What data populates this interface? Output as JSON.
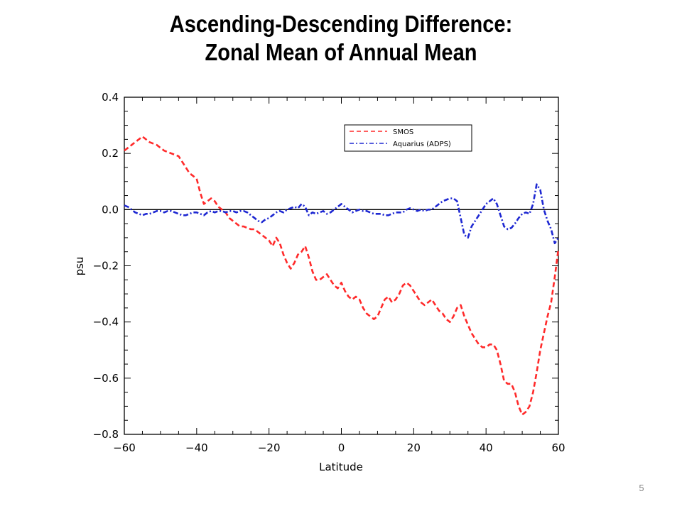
{
  "slide": {
    "title_line1": "Ascending-Descending Difference:",
    "title_line2": "Zonal Mean of Annual Mean",
    "page_number": "5"
  },
  "chart_data": {
    "type": "line",
    "title": "Ascending-Descending Difference: Zonal Mean of Annual Mean",
    "xlabel": "Latitude",
    "ylabel": "psu",
    "xlim": [
      -60,
      60
    ],
    "ylim": [
      -0.8,
      0.4
    ],
    "xticks": [
      -60,
      -40,
      -20,
      0,
      20,
      40,
      60
    ],
    "xtick_labels": [
      "−60",
      "−40",
      "−20",
      "0",
      "20",
      "40",
      "60"
    ],
    "yticks": [
      -0.8,
      -0.6,
      -0.4,
      -0.2,
      0.0,
      0.2,
      0.4
    ],
    "ytick_labels": [
      "−0.8",
      "−0.6",
      "−0.4",
      "−0.2",
      "0.0",
      "0.2",
      "0.4"
    ],
    "grid": false,
    "legend_position": "top-right",
    "reference_line": 0.0,
    "series": [
      {
        "name": "SMOS",
        "color": "#ff2a2a",
        "style": "dashed",
        "x": [
          -60,
          -59,
          -58,
          -57,
          -56,
          -55,
          -54,
          -53,
          -52,
          -51,
          -50,
          -49,
          -48,
          -47,
          -46,
          -45,
          -44,
          -43,
          -42,
          -41,
          -40,
          -39,
          -38,
          -37,
          -36,
          -35,
          -34,
          -33,
          -32,
          -31,
          -30,
          -29,
          -28,
          -27,
          -26,
          -25,
          -24,
          -23,
          -22,
          -21,
          -20,
          -19,
          -18,
          -17,
          -16,
          -15,
          -14,
          -13,
          -12,
          -11,
          -10,
          -9,
          -8,
          -7,
          -6,
          -5,
          -4,
          -3,
          -2,
          -1,
          0,
          1,
          2,
          3,
          4,
          5,
          6,
          7,
          8,
          9,
          10,
          11,
          12,
          13,
          14,
          15,
          16,
          17,
          18,
          19,
          20,
          21,
          22,
          23,
          24,
          25,
          26,
          27,
          28,
          29,
          30,
          31,
          32,
          33,
          34,
          35,
          36,
          37,
          38,
          39,
          40,
          41,
          42,
          43,
          44,
          45,
          46,
          47,
          48,
          49,
          50,
          51,
          52,
          53,
          54,
          55,
          56,
          57,
          58,
          59,
          60
        ],
        "y": [
          0.21,
          0.22,
          0.23,
          0.24,
          0.25,
          0.26,
          0.25,
          0.24,
          0.235,
          0.23,
          0.22,
          0.21,
          0.205,
          0.2,
          0.195,
          0.19,
          0.17,
          0.15,
          0.13,
          0.12,
          0.11,
          0.06,
          0.02,
          0.03,
          0.04,
          0.03,
          0.01,
          0.0,
          -0.01,
          -0.03,
          -0.04,
          -0.05,
          -0.06,
          -0.06,
          -0.065,
          -0.07,
          -0.07,
          -0.08,
          -0.09,
          -0.1,
          -0.11,
          -0.13,
          -0.1,
          -0.12,
          -0.16,
          -0.19,
          -0.21,
          -0.19,
          -0.16,
          -0.15,
          -0.13,
          -0.17,
          -0.22,
          -0.25,
          -0.25,
          -0.24,
          -0.23,
          -0.25,
          -0.27,
          -0.28,
          -0.26,
          -0.29,
          -0.31,
          -0.32,
          -0.31,
          -0.32,
          -0.35,
          -0.37,
          -0.38,
          -0.39,
          -0.38,
          -0.35,
          -0.32,
          -0.31,
          -0.33,
          -0.32,
          -0.3,
          -0.27,
          -0.26,
          -0.27,
          -0.29,
          -0.31,
          -0.33,
          -0.34,
          -0.33,
          -0.32,
          -0.34,
          -0.36,
          -0.37,
          -0.39,
          -0.4,
          -0.38,
          -0.35,
          -0.34,
          -0.38,
          -0.41,
          -0.44,
          -0.46,
          -0.48,
          -0.49,
          -0.49,
          -0.48,
          -0.48,
          -0.5,
          -0.55,
          -0.61,
          -0.62,
          -0.62,
          -0.65,
          -0.7,
          -0.73,
          -0.72,
          -0.7,
          -0.65,
          -0.58,
          -0.5,
          -0.44,
          -0.38,
          -0.33,
          -0.24,
          -0.14
        ]
      },
      {
        "name": "Aquarius (ADPS)",
        "color": "#1e28d2",
        "style": "dash-dot",
        "x": [
          -60,
          -59,
          -58,
          -57,
          -56,
          -55,
          -54,
          -53,
          -52,
          -51,
          -50,
          -49,
          -48,
          -47,
          -46,
          -45,
          -44,
          -43,
          -42,
          -41,
          -40,
          -39,
          -38,
          -37,
          -36,
          -35,
          -34,
          -33,
          -32,
          -31,
          -30,
          -29,
          -28,
          -27,
          -26,
          -25,
          -24,
          -23,
          -22,
          -21,
          -20,
          -19,
          -18,
          -17,
          -16,
          -15,
          -14,
          -13,
          -12,
          -11,
          -10,
          -9,
          -8,
          -7,
          -6,
          -5,
          -4,
          -3,
          -2,
          -1,
          0,
          1,
          2,
          3,
          4,
          5,
          6,
          7,
          8,
          9,
          10,
          11,
          12,
          13,
          14,
          15,
          16,
          17,
          18,
          19,
          20,
          21,
          22,
          23,
          24,
          25,
          26,
          27,
          28,
          29,
          30,
          31,
          32,
          33,
          34,
          35,
          36,
          37,
          38,
          39,
          40,
          41,
          42,
          43,
          44,
          45,
          46,
          47,
          48,
          49,
          50,
          51,
          52,
          53,
          54,
          55,
          56,
          57,
          58,
          59,
          60
        ],
        "y": [
          0.015,
          0.01,
          0.0,
          -0.01,
          -0.015,
          -0.02,
          -0.015,
          -0.015,
          -0.01,
          -0.005,
          -0.005,
          -0.01,
          -0.005,
          -0.005,
          -0.01,
          -0.015,
          -0.02,
          -0.02,
          -0.015,
          -0.01,
          -0.01,
          -0.015,
          -0.02,
          -0.01,
          -0.005,
          -0.01,
          -0.005,
          -0.005,
          -0.01,
          -0.005,
          -0.005,
          -0.01,
          -0.005,
          -0.005,
          -0.01,
          -0.02,
          -0.03,
          -0.04,
          -0.045,
          -0.035,
          -0.03,
          -0.02,
          -0.01,
          -0.005,
          -0.01,
          0.0,
          0.005,
          0.01,
          0.005,
          0.02,
          0.01,
          -0.02,
          -0.01,
          -0.015,
          -0.01,
          -0.005,
          -0.015,
          -0.01,
          0.0,
          0.01,
          0.02,
          0.01,
          0.0,
          -0.01,
          -0.005,
          0.0,
          -0.005,
          -0.005,
          -0.01,
          -0.015,
          -0.015,
          -0.015,
          -0.02,
          -0.02,
          -0.015,
          -0.01,
          -0.01,
          -0.01,
          0.0,
          0.005,
          0.0,
          -0.005,
          0.0,
          -0.005,
          0.0,
          0.0,
          0.01,
          0.02,
          0.03,
          0.035,
          0.04,
          0.04,
          0.03,
          -0.03,
          -0.09,
          -0.1,
          -0.06,
          -0.04,
          -0.02,
          0.0,
          0.02,
          0.03,
          0.04,
          0.02,
          -0.02,
          -0.06,
          -0.07,
          -0.065,
          -0.05,
          -0.03,
          -0.015,
          -0.01,
          -0.015,
          0.02,
          0.09,
          0.07,
          0.0,
          -0.04,
          -0.07,
          -0.12,
          -0.1
        ]
      }
    ]
  }
}
